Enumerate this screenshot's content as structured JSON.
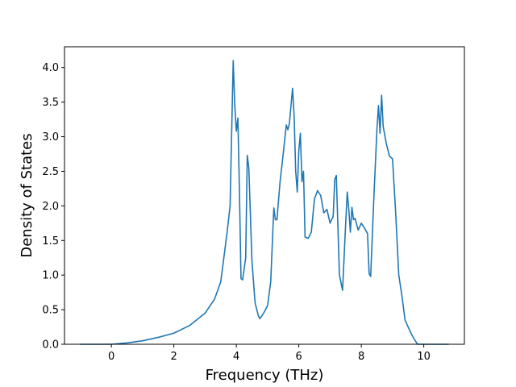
{
  "chart_data": {
    "type": "line",
    "title": "",
    "xlabel": "Frequency (THz)",
    "ylabel": "Density of States",
    "xlim": [
      -1.5,
      11.3
    ],
    "ylim": [
      0.0,
      4.3
    ],
    "xticks": [
      0,
      2,
      4,
      6,
      8,
      10
    ],
    "yticks": [
      0.0,
      0.5,
      1.0,
      1.5,
      2.0,
      2.5,
      3.0,
      3.5,
      4.0
    ],
    "grid": false,
    "line_color": "#1f77b4",
    "series": [
      {
        "x": [
          -1.0,
          -0.5,
          0.0,
          0.5,
          1.0,
          1.5,
          2.0,
          2.5,
          3.0,
          3.3,
          3.5,
          3.7,
          3.8,
          3.9,
          3.95,
          4.0,
          4.05,
          4.1,
          4.15,
          4.2,
          4.3,
          4.35,
          4.4,
          4.5,
          4.6,
          4.7,
          4.75,
          4.8,
          4.9,
          5.0,
          5.1,
          5.2,
          5.25,
          5.3,
          5.4,
          5.5,
          5.6,
          5.65,
          5.7,
          5.8,
          5.85,
          5.9,
          5.95,
          6.0,
          6.05,
          6.1,
          6.15,
          6.2,
          6.3,
          6.4,
          6.5,
          6.6,
          6.7,
          6.8,
          6.9,
          7.0,
          7.1,
          7.15,
          7.2,
          7.3,
          7.4,
          7.5,
          7.55,
          7.6,
          7.65,
          7.7,
          7.75,
          7.8,
          7.9,
          8.0,
          8.1,
          8.2,
          8.25,
          8.3,
          8.4,
          8.5,
          8.55,
          8.6,
          8.65,
          8.7,
          8.8,
          8.9,
          9.0,
          9.1,
          9.2,
          9.3,
          9.4,
          9.5,
          9.6,
          9.7,
          9.8,
          10.0,
          10.8
        ],
        "y": [
          0.0,
          0.0,
          0.0,
          0.02,
          0.05,
          0.1,
          0.16,
          0.27,
          0.45,
          0.65,
          0.9,
          1.6,
          2.0,
          4.1,
          3.45,
          3.08,
          3.27,
          2.2,
          0.95,
          0.93,
          1.25,
          2.73,
          2.55,
          1.2,
          0.6,
          0.42,
          0.37,
          0.4,
          0.47,
          0.56,
          0.9,
          1.97,
          1.8,
          1.8,
          2.35,
          2.75,
          3.17,
          3.1,
          3.2,
          3.7,
          3.3,
          2.5,
          2.2,
          2.8,
          3.05,
          2.35,
          2.5,
          1.55,
          1.53,
          1.62,
          2.1,
          2.22,
          2.15,
          1.9,
          1.95,
          1.75,
          1.85,
          2.38,
          2.44,
          1.0,
          0.78,
          1.75,
          2.2,
          1.95,
          1.62,
          1.98,
          1.8,
          1.82,
          1.65,
          1.75,
          1.68,
          1.6,
          1.02,
          0.98,
          2.1,
          3.1,
          3.45,
          3.05,
          3.6,
          3.15,
          2.9,
          2.72,
          2.68,
          1.9,
          1.0,
          0.7,
          0.35,
          0.25,
          0.15,
          0.07,
          0.0,
          0.0,
          0.0
        ]
      }
    ]
  }
}
